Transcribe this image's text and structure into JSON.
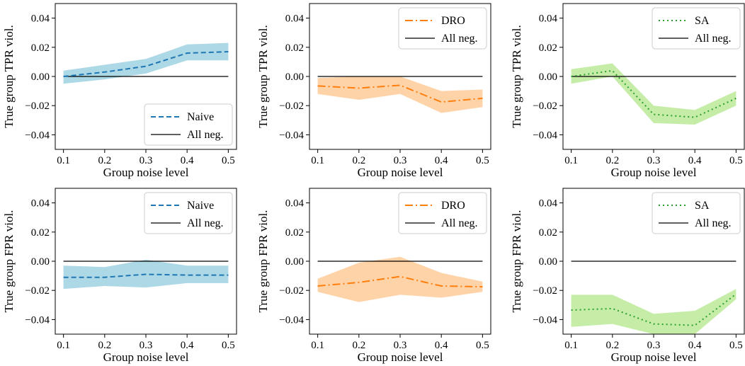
{
  "colors": {
    "naive_line": "#1f77b4",
    "naive_band": "#add8e6",
    "dro_line": "#ff7f0e",
    "dro_band": "#ffd3a8",
    "sa_line": "#2ca02c",
    "sa_band": "#c5eda8",
    "ref_line": "#000000"
  },
  "chart_data": [
    {
      "type": "line",
      "ylabel": "True group TPR viol.",
      "xlabel": "Group noise level",
      "x": [
        0.1,
        0.2,
        0.3,
        0.4,
        0.5
      ],
      "xticks": [
        "0.1",
        "0.2",
        "0.3",
        "0.4",
        "0.5"
      ],
      "ylim": [
        -0.05,
        0.05
      ],
      "yticks": [
        "0.04",
        "0.02",
        "0.00",
        "−0.02",
        "−0.04"
      ],
      "legend_position": "lower-right",
      "series": [
        {
          "name": "Naive",
          "style": "dashed",
          "values": [
            0.0,
            0.003,
            0.007,
            0.016,
            0.017
          ],
          "lower": [
            -0.005,
            -0.002,
            0.002,
            0.011,
            0.011
          ],
          "upper": [
            0.004,
            0.008,
            0.012,
            0.022,
            0.023
          ]
        },
        {
          "name": "All neg.",
          "style": "solid",
          "values": [
            0.0,
            0.0,
            0.0,
            0.0,
            0.0
          ]
        }
      ]
    },
    {
      "type": "line",
      "ylabel": "True group TPR viol.",
      "xlabel": "Group noise level",
      "x": [
        0.1,
        0.2,
        0.3,
        0.4,
        0.5
      ],
      "xticks": [
        "0.1",
        "0.2",
        "0.3",
        "0.4",
        "0.5"
      ],
      "ylim": [
        -0.05,
        0.05
      ],
      "yticks": [
        "0.04",
        "0.02",
        "0.00",
        "−0.02",
        "−0.04"
      ],
      "legend_position": "top-right",
      "series": [
        {
          "name": "DRO",
          "style": "dashdot",
          "values": [
            -0.0065,
            -0.008,
            -0.006,
            -0.0175,
            -0.015
          ],
          "lower": [
            -0.012,
            -0.016,
            -0.012,
            -0.025,
            -0.021
          ],
          "upper": [
            -0.001,
            0.0,
            0.0,
            -0.01,
            -0.009
          ]
        },
        {
          "name": "All neg.",
          "style": "solid",
          "values": [
            0.0,
            0.0,
            0.0,
            0.0,
            0.0
          ]
        }
      ]
    },
    {
      "type": "line",
      "ylabel": "True group TPR viol.",
      "xlabel": "Group noise level",
      "x": [
        0.1,
        0.2,
        0.3,
        0.4,
        0.5
      ],
      "xticks": [
        "0.1",
        "0.2",
        "0.3",
        "0.4",
        "0.5"
      ],
      "ylim": [
        -0.05,
        0.05
      ],
      "yticks": [
        "0.04",
        "0.02",
        "0.00",
        "−0.02",
        "−0.04"
      ],
      "legend_position": "top-right",
      "series": [
        {
          "name": "SA",
          "style": "dotted",
          "values": [
            0.0,
            0.004,
            -0.026,
            -0.028,
            -0.015
          ],
          "lower": [
            -0.005,
            0.0,
            -0.032,
            -0.033,
            -0.02
          ],
          "upper": [
            0.005,
            0.009,
            -0.02,
            -0.023,
            -0.01
          ]
        },
        {
          "name": "All neg.",
          "style": "solid",
          "values": [
            0.0,
            0.0,
            0.0,
            0.0,
            0.0
          ]
        }
      ]
    },
    {
      "type": "line",
      "ylabel": "True group FPR viol.",
      "xlabel": "Group noise level",
      "x": [
        0.1,
        0.2,
        0.3,
        0.4,
        0.5
      ],
      "xticks": [
        "0.1",
        "0.2",
        "0.3",
        "0.4",
        "0.5"
      ],
      "ylim": [
        -0.05,
        0.05
      ],
      "yticks": [
        "0.04",
        "0.02",
        "0.00",
        "−0.02",
        "−0.04"
      ],
      "legend_position": "top-right",
      "series": [
        {
          "name": "Naive",
          "style": "dashed",
          "values": [
            -0.011,
            -0.011,
            -0.009,
            -0.0095,
            -0.0095
          ],
          "lower": [
            -0.019,
            -0.017,
            -0.018,
            -0.015,
            -0.015
          ],
          "upper": [
            -0.003,
            -0.004,
            0.001,
            -0.003,
            -0.003
          ]
        },
        {
          "name": "All neg.",
          "style": "solid",
          "values": [
            0.0,
            0.0,
            0.0,
            0.0,
            0.0
          ]
        }
      ]
    },
    {
      "type": "line",
      "ylabel": "True group FPR viol.",
      "xlabel": "Group noise level",
      "x": [
        0.1,
        0.2,
        0.3,
        0.4,
        0.5
      ],
      "xticks": [
        "0.1",
        "0.2",
        "0.3",
        "0.4",
        "0.5"
      ],
      "ylim": [
        -0.05,
        0.05
      ],
      "yticks": [
        "0.04",
        "0.02",
        "0.00",
        "−0.02",
        "−0.04"
      ],
      "legend_position": "top-right",
      "series": [
        {
          "name": "DRO",
          "style": "dashdot",
          "values": [
            -0.017,
            -0.0145,
            -0.0105,
            -0.017,
            -0.0175
          ],
          "lower": [
            -0.021,
            -0.028,
            -0.023,
            -0.025,
            -0.021
          ],
          "upper": [
            -0.012,
            -0.001,
            0.003,
            -0.008,
            -0.014
          ]
        },
        {
          "name": "All neg.",
          "style": "solid",
          "values": [
            0.0,
            0.0,
            0.0,
            0.0,
            0.0
          ]
        }
      ]
    },
    {
      "type": "line",
      "ylabel": "True group FPR viol.",
      "xlabel": "Group noise level",
      "x": [
        0.1,
        0.2,
        0.3,
        0.4,
        0.5
      ],
      "xticks": [
        "0.1",
        "0.2",
        "0.3",
        "0.4",
        "0.5"
      ],
      "ylim": [
        -0.05,
        0.05
      ],
      "yticks": [
        "0.04",
        "0.02",
        "0.00",
        "−0.02",
        "−0.04"
      ],
      "legend_position": "top-right",
      "series": [
        {
          "name": "SA",
          "style": "dotted",
          "values": [
            -0.0335,
            -0.0325,
            -0.043,
            -0.044,
            -0.0225
          ],
          "lower": [
            -0.045,
            -0.043,
            -0.05,
            -0.05,
            -0.026
          ],
          "upper": [
            -0.023,
            -0.023,
            -0.036,
            -0.034,
            -0.019
          ]
        },
        {
          "name": "All neg.",
          "style": "solid",
          "values": [
            0.0,
            0.0,
            0.0,
            0.0,
            0.0
          ]
        }
      ]
    }
  ]
}
